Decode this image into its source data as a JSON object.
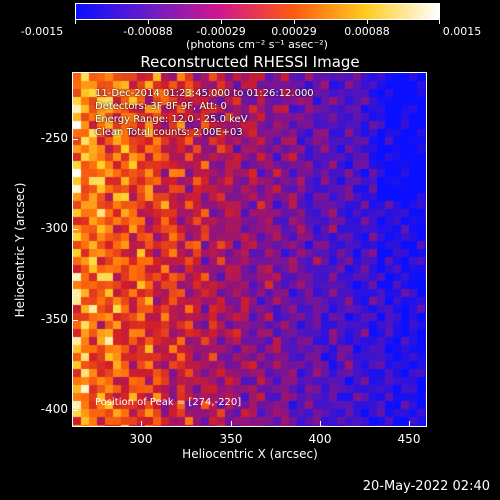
{
  "colorbar": {
    "tick_labels": [
      "-0.0015",
      "-0.00088",
      "-0.00029",
      "0.00029",
      "0.00088",
      "0.0015"
    ],
    "units": "(photons cm⁻² s⁻¹ asec⁻²)",
    "colors": [
      "#0a10ff",
      "#6a1cc8",
      "#d1188a",
      "#ff5a10",
      "#ffcc20",
      "#ffffff"
    ]
  },
  "title": "Reconstructed RHESSI Image",
  "info": {
    "line1": "11-Dec-2014 01:23:45.000 to 01:26:12.000",
    "line2": "Detectors: 3F 8F 9F, Att: 0",
    "line3": "Energy Range: 12.0 - 25.0 keV",
    "line4": "Clean    Total counts: 2.00E+03"
  },
  "peak_text": "Position of Peak = [274,-220]",
  "axes": {
    "x_label": "Heliocentric X (arcsec)",
    "y_label": "Heliocentric Y (arcsec)",
    "x_ticks": [
      "300",
      "350",
      "400",
      "450"
    ],
    "y_ticks": [
      "-250",
      "-300",
      "-350",
      "-400"
    ]
  },
  "timestamp": "20-May-2022 02:40"
}
